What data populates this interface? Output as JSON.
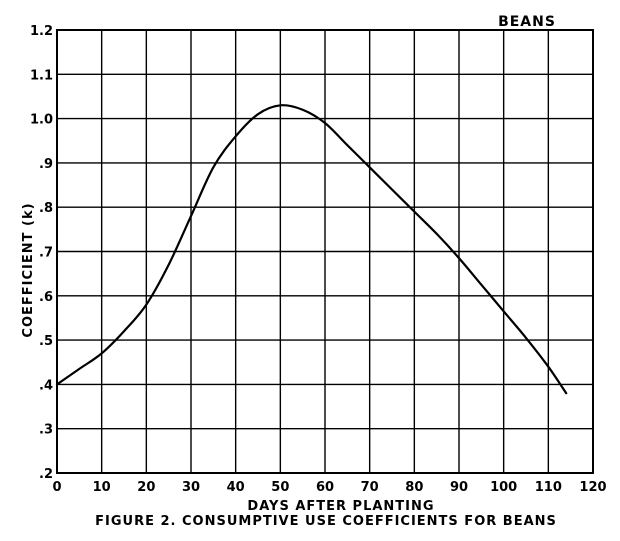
{
  "chart_data": {
    "type": "line",
    "title": "",
    "caption": "FIGURE 2. CONSUMPTIVE USE COEFFICIENTS FOR BEANS",
    "label": "BEANS",
    "xlabel": "DAYS AFTER PLANTING",
    "ylabel": "COEFFICIENT (k)",
    "xlim": [
      0,
      120
    ],
    "ylim": [
      0.2,
      1.2
    ],
    "x_ticks": [
      0,
      10,
      20,
      30,
      40,
      50,
      60,
      70,
      80,
      90,
      100,
      110,
      120
    ],
    "x_tick_labels": [
      "0",
      "10",
      "20",
      "30",
      "40",
      "50",
      "60",
      "70",
      "80",
      "90",
      "100",
      "110",
      "120"
    ],
    "y_ticks": [
      0.2,
      0.3,
      0.4,
      0.5,
      0.6,
      0.7,
      0.8,
      0.9,
      1.0,
      1.1,
      1.2
    ],
    "y_tick_labels": [
      ".2",
      ".3",
      ".4",
      ".5",
      ".6",
      ".7",
      ".8",
      ".9",
      "1.0",
      "1.1",
      "1.2"
    ],
    "grid": true,
    "series": [
      {
        "x": [
          0,
          5,
          10,
          15,
          20,
          25,
          30,
          35,
          40,
          45,
          50,
          55,
          60,
          65,
          70,
          75,
          80,
          85,
          90,
          95,
          100,
          105,
          110,
          114
        ],
        "y": [
          0.4,
          0.435,
          0.47,
          0.52,
          0.58,
          0.67,
          0.78,
          0.89,
          0.96,
          1.01,
          1.03,
          1.02,
          0.99,
          0.94,
          0.89,
          0.84,
          0.79,
          0.74,
          0.685,
          0.625,
          0.565,
          0.505,
          0.44,
          0.38
        ]
      }
    ]
  }
}
